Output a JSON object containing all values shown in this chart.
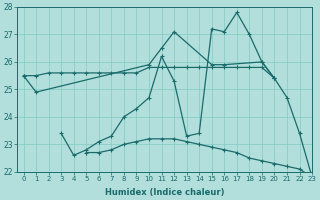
{
  "xlabel": "Humidex (Indice chaleur)",
  "bg_color": "#b2dfdb",
  "grid_color": "#80cbc4",
  "line_color": "#1a6b6b",
  "xlim": [
    -0.5,
    23
  ],
  "ylim": [
    22,
    28
  ],
  "series": [
    {
      "x": [
        0,
        1,
        2,
        3,
        4,
        5,
        6,
        7,
        8,
        9,
        10,
        11,
        12,
        13,
        14,
        15,
        16,
        17,
        18,
        19,
        20
      ],
      "y": [
        25.5,
        25.5,
        25.6,
        25.6,
        25.6,
        25.6,
        25.6,
        25.6,
        25.6,
        25.6,
        25.8,
        25.8,
        25.8,
        25.8,
        25.8,
        25.8,
        25.8,
        25.8,
        25.8,
        25.8,
        25.4
      ]
    },
    {
      "x": [
        0,
        1,
        10,
        11,
        12,
        15,
        16,
        19,
        20
      ],
      "y": [
        25.5,
        24.9,
        25.9,
        26.5,
        27.1,
        25.9,
        25.9,
        26.0,
        25.4
      ]
    },
    {
      "x": [
        3,
        4,
        5,
        6,
        7,
        8,
        9,
        10,
        11,
        12,
        13,
        14,
        15,
        16,
        17,
        18,
        19,
        20,
        21,
        22,
        23
      ],
      "y": [
        23.4,
        22.6,
        22.8,
        23.1,
        23.3,
        24.0,
        24.3,
        24.7,
        26.2,
        25.3,
        23.3,
        23.4,
        27.2,
        27.1,
        27.8,
        27.0,
        26.0,
        25.4,
        24.7,
        23.4,
        21.8
      ]
    },
    {
      "x": [
        5,
        6,
        7,
        8,
        9,
        10,
        11,
        12,
        13,
        14,
        15,
        16,
        17,
        18,
        19,
        20,
        21,
        22,
        23
      ],
      "y": [
        22.7,
        22.7,
        22.8,
        23.0,
        23.1,
        23.2,
        23.2,
        23.2,
        23.1,
        23.0,
        22.9,
        22.8,
        22.7,
        22.5,
        22.4,
        22.3,
        22.2,
        22.1,
        21.8
      ]
    }
  ]
}
